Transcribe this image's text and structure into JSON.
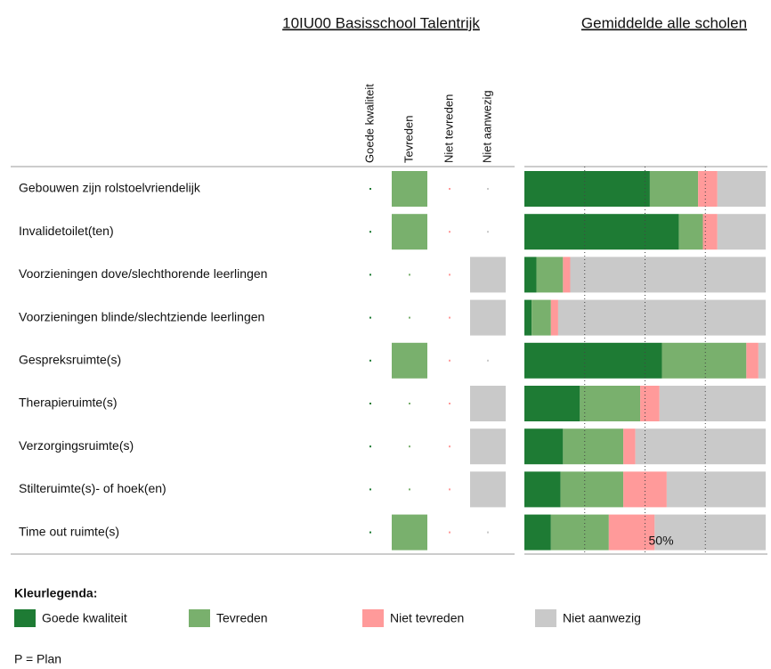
{
  "school_title": "10IU00 Basisschool Talentrijk",
  "average_title": "Gemiddelde alle scholen",
  "columns": [
    "Goede kwaliteit",
    "Tevreden",
    "Niet tevreden",
    "Niet aanwezig"
  ],
  "rows": [
    {
      "label": "Gebouwen zijn rolstoelvriendelijk",
      "selected": 1
    },
    {
      "label": "Invalidetoilet(ten)",
      "selected": 1
    },
    {
      "label": "Voorzieningen dove/slechthorende leerlingen",
      "selected": 3
    },
    {
      "label": "Voorzieningen blinde/slechtziende leerlingen",
      "selected": 3
    },
    {
      "label": "Gespreksruimte(s)",
      "selected": 1
    },
    {
      "label": "Therapieruimte(s)",
      "selected": 3
    },
    {
      "label": "Verzorgingsruimte(s)",
      "selected": 3
    },
    {
      "label": "Stilteruimte(s)- of hoek(en)",
      "selected": 3
    },
    {
      "label": "Time out ruimte(s)",
      "selected": 1
    }
  ],
  "legend_title": "Kleurlegenda:",
  "footnote": "P = Plan",
  "chart_data": {
    "type": "stacked-bar",
    "xlim": [
      0,
      100
    ],
    "grid_lines": [
      25,
      50,
      75
    ],
    "xticks": [
      {
        "value": 50,
        "label": "50%"
      }
    ],
    "series": [
      {
        "name": "Goede kwaliteit",
        "color": "#1e7b34",
        "values": [
          52,
          64,
          5,
          3,
          57,
          23,
          16,
          15,
          11
        ]
      },
      {
        "name": "Tevreden",
        "color": "#79b06d",
        "values": [
          20,
          10,
          11,
          8,
          35,
          25,
          25,
          26,
          24
        ]
      },
      {
        "name": "Niet tevreden",
        "color": "#ff9a9a",
        "values": [
          8,
          6,
          3,
          3,
          5,
          8,
          5,
          18,
          19
        ]
      },
      {
        "name": "Niet aanwezig",
        "color": "#c9c9c9",
        "values": [
          20,
          20,
          81,
          86,
          3,
          44,
          54,
          41,
          46
        ]
      }
    ]
  }
}
